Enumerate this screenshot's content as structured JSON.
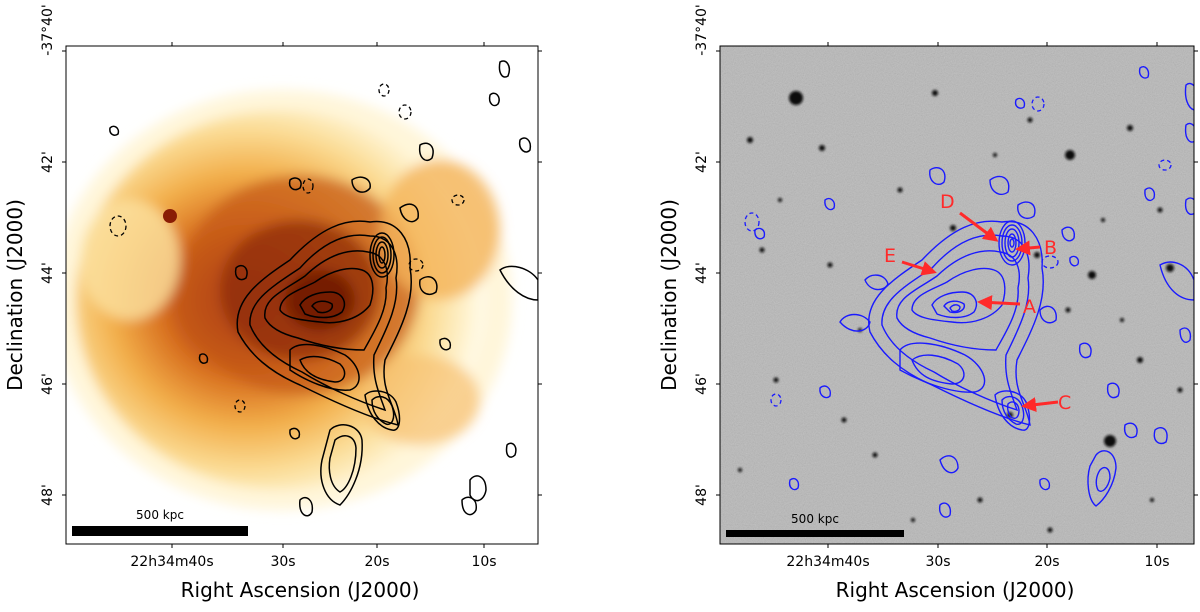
{
  "panels": {
    "left": {
      "decl_label": "Declination (J2000)",
      "ra_label": "Right Ascension (J2000)",
      "y_ticks": [
        "-37°40'",
        "42'",
        "44'",
        "46'",
        "48'"
      ],
      "x_ticks": [
        "22h34m40s",
        "30s",
        "20s",
        "10s"
      ],
      "scalebar": "500 kpc",
      "colors": {
        "contour": "#000000",
        "xray_core": "#8a1d05"
      }
    },
    "right": {
      "decl_label": "Declination (J2000)",
      "ra_label": "Right Ascension (J2000)",
      "y_ticks": [
        "-37°40'",
        "42'",
        "44'",
        "46'",
        "48'"
      ],
      "x_ticks": [
        "22h34m40s",
        "30s",
        "20s",
        "10s"
      ],
      "scalebar": "500 kpc",
      "source_labels": [
        "A",
        "B",
        "C",
        "D",
        "E"
      ],
      "colors": {
        "contour": "#1a1aff",
        "arrow": "#ff2a2a"
      }
    }
  }
}
